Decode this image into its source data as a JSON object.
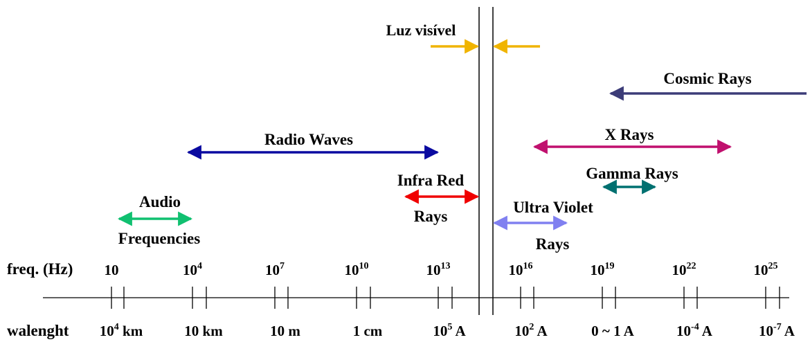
{
  "labels": {
    "luz_visivel": "Luz visível",
    "cosmic_rays": "Cosmic Rays",
    "radio_waves": "Radio Waves",
    "x_rays": "X Rays",
    "gamma_rays": "Gamma Rays",
    "infra_red_1": "Infra Red",
    "infra_red_2": "Rays",
    "ultra_violet_1": "Ultra Violet",
    "ultra_violet_2": "Rays",
    "audio_1": "Audio",
    "audio_2": "Frequencies"
  },
  "axis": {
    "freq_label": "freq. (Hz)",
    "wavelength_label": "walenght",
    "frequencies": [
      {
        "base": "10",
        "exp": ""
      },
      {
        "base": "10",
        "exp": "4"
      },
      {
        "base": "10",
        "exp": "7"
      },
      {
        "base": "10",
        "exp": "10"
      },
      {
        "base": "10",
        "exp": "13"
      },
      {
        "base": "10",
        "exp": "16"
      },
      {
        "base": "10",
        "exp": "19"
      },
      {
        "base": "10",
        "exp": "22"
      },
      {
        "base": "10",
        "exp": "25"
      }
    ],
    "wavelengths": [
      {
        "base": "10",
        "exp": "4",
        "unit": " km"
      },
      {
        "base": "10 km",
        "exp": "",
        "unit": ""
      },
      {
        "base": "10 m",
        "exp": "",
        "unit": ""
      },
      {
        "base": "1 cm",
        "exp": "",
        "unit": ""
      },
      {
        "base": "10",
        "exp": "5",
        "unit": " A"
      },
      {
        "base": "10",
        "exp": "2",
        "unit": " A"
      },
      {
        "base": "0 ~ 1 A",
        "exp": "",
        "unit": ""
      },
      {
        "base": "10",
        "exp": "-4",
        "unit": " A"
      },
      {
        "base": "10",
        "exp": "-7",
        "unit": " A"
      }
    ]
  },
  "colors": {
    "visible": "#F0B400",
    "cosmic": "#3C3C78",
    "radio": "#0A0AA0",
    "xray": "#C0106E",
    "gamma": "#007070",
    "infrared": "#F00000",
    "ultraviolet": "#8080F0",
    "audio": "#10C070"
  }
}
